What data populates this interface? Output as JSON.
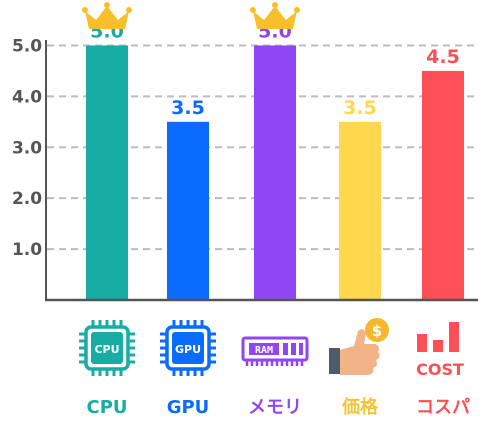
{
  "chart_data": {
    "type": "bar",
    "categories": [
      "CPU",
      "GPU",
      "メモリ",
      "価格",
      "コスパ"
    ],
    "values": [
      5.0,
      3.5,
      5.0,
      3.5,
      4.5
    ],
    "value_labels": [
      "5.0",
      "3.5",
      "5.0",
      "3.5",
      "4.5"
    ],
    "colors": [
      "#17ada5",
      "#0a6cff",
      "#9146f5",
      "#ffd84d",
      "#ff4f56"
    ],
    "yticks": [
      "1.0",
      "2.0",
      "3.0",
      "4.0",
      "5.0"
    ],
    "ylim": [
      0,
      5.5
    ],
    "grid": true,
    "grid_style": "dashed",
    "title": "",
    "xlabel": "",
    "ylabel": ""
  },
  "crowns": [
    0,
    2
  ],
  "icons": [
    {
      "name": "cpu-chip-icon",
      "text": "CPU"
    },
    {
      "name": "gpu-chip-icon",
      "text": "GPU"
    },
    {
      "name": "ram-module-icon",
      "text": "RAM"
    },
    {
      "name": "price-thumbs-up-icon",
      "text": "$"
    },
    {
      "name": "cost-chart-icon",
      "text": "COST"
    }
  ],
  "crown_color": "#f7bf2a"
}
